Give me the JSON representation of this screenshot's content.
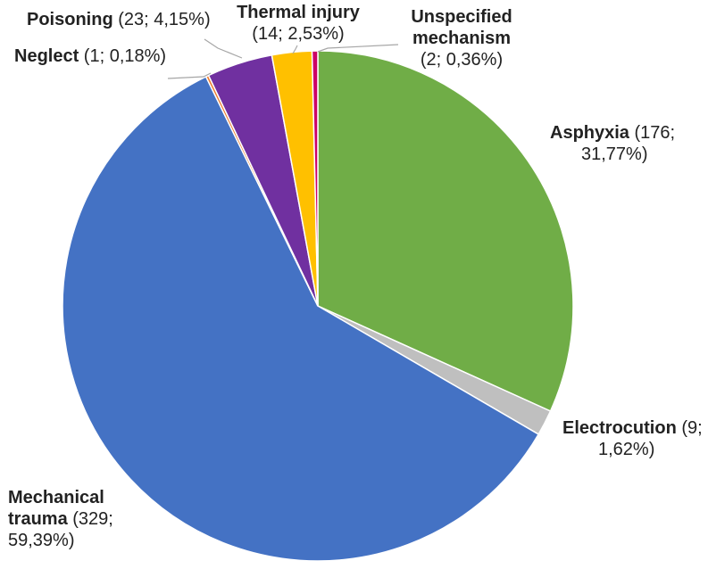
{
  "chart_data": {
    "type": "pie",
    "title": "",
    "start_angle_deg": 0,
    "direction": "clockwise",
    "slices": [
      {
        "name": "Asphyxia",
        "value": 176,
        "percent": "31,77%",
        "color": "#70AD47",
        "lines": [
          "Asphyxia",
          " (176;",
          "31,77%)"
        ]
      },
      {
        "name": "Electrocution",
        "value": 9,
        "percent": "1,62%",
        "color": "#BFBFBF",
        "lines": [
          "Electrocution",
          " (9;",
          "1,62%)"
        ]
      },
      {
        "name": "Mechanical trauma",
        "value": 329,
        "percent": "59,39%",
        "color": "#4472C4",
        "lines": [
          "Mechanical",
          "trauma",
          " (329;",
          "59,39%)"
        ]
      },
      {
        "name": "Neglect",
        "value": 1,
        "percent": "0,18%",
        "color": "#ED7D31",
        "lines": [
          "Neglect",
          " (1; 0,18%)"
        ]
      },
      {
        "name": "Poisoning",
        "value": 23,
        "percent": "4,15%",
        "color": "#7030A0",
        "lines": [
          "Poisoning",
          " (23; 4,15%)"
        ]
      },
      {
        "name": "Thermal injury",
        "value": 14,
        "percent": "2,53%",
        "color": "#FFC000",
        "lines": [
          "Thermal injury",
          "(14; 2,53%)"
        ]
      },
      {
        "name": "Unspecified mechanism",
        "value": 2,
        "percent": "0,36%",
        "color": "#CC0066",
        "lines": [
          "Unspecified",
          "mechanism",
          "(2; 0,36%)"
        ]
      }
    ]
  }
}
